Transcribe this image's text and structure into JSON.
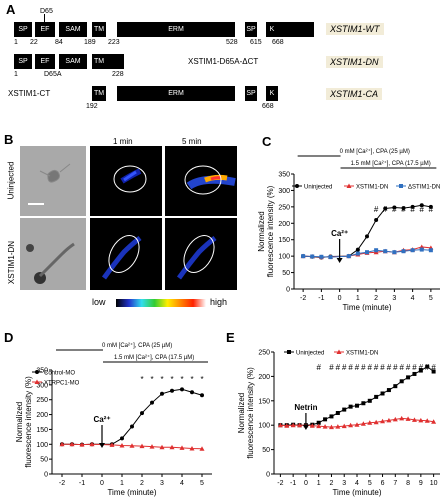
{
  "panels": {
    "A": "A",
    "B": "B",
    "C": "C",
    "D": "D",
    "E": "E"
  },
  "panelA": {
    "rows": [
      {
        "name": "XSTIM1-WT",
        "domains": [
          "SP",
          "EF",
          "SAM",
          "TM",
          "ERM",
          "SP",
          "K"
        ],
        "positions": [
          "1",
          "22",
          "84",
          "189",
          "223",
          "528",
          "615",
          "668"
        ],
        "mutation": "D65"
      },
      {
        "name": "XSTIM1-DN",
        "label": "XSTIM1-D65A-ΔCT",
        "domains": [
          "SP",
          "EF",
          "SAM",
          "TM"
        ],
        "positions": [
          "1",
          "D65A",
          "228"
        ]
      },
      {
        "name": "XSTIM1-CA",
        "label": "XSTIM1-CT",
        "domains": [
          "TM",
          "ERM",
          "SP",
          "K"
        ],
        "positions": [
          "192",
          "668"
        ]
      }
    ]
  },
  "panelB": {
    "col_headers": [
      "1 min",
      "5 min"
    ],
    "row_labels": [
      "Uninjected",
      "XSTIM1-DN"
    ],
    "scale_low": "low",
    "scale_high": "high"
  },
  "treatment": {
    "zero_ca": "0 mM [Ca²⁺], CPA (25 µM)",
    "high_ca": "1.5 mM [Ca²⁺], CPA (17.5 µM)",
    "ca_arrow": "Ca²⁺",
    "netrin_arrow": "Netrin"
  },
  "axis": {
    "ylabel": "Normalized fluorescence intensity (%)",
    "xlabel": "Time (minute)"
  },
  "chart_data": [
    {
      "panel": "C",
      "type": "line",
      "xlabel": "Time (minute)",
      "ylabel": "Normalized fluorescence intensity (%)",
      "xlim": [
        -2.5,
        5.5
      ],
      "ylim": [
        0,
        350
      ],
      "xticks": [
        -2,
        -1,
        0,
        1,
        2,
        3,
        4,
        5
      ],
      "yticks": [
        0,
        50,
        100,
        150,
        200,
        250,
        300,
        350
      ],
      "series": [
        {
          "name": "Uninjected",
          "color": "#000000",
          "marker": "circle",
          "x": [
            -2,
            -1.5,
            -1,
            -0.5,
            0.5,
            1,
            1.5,
            2,
            2.5,
            3,
            3.5,
            4,
            4.5,
            5
          ],
          "y": [
            100,
            98,
            96,
            99,
            100,
            120,
            160,
            210,
            245,
            248,
            246,
            250,
            255,
            250
          ]
        },
        {
          "name": "XSTIM1-DN",
          "color": "#e03030",
          "marker": "triangle",
          "x": [
            -2,
            -1.5,
            -1,
            -0.5,
            0.5,
            1,
            1.5,
            2,
            2.5,
            3,
            3.5,
            4,
            4.5,
            5
          ],
          "y": [
            100,
            99,
            97,
            98,
            100,
            105,
            110,
            112,
            115,
            112,
            118,
            120,
            128,
            125
          ]
        },
        {
          "name": "ΔSTIM1-DN",
          "color": "#3070c0",
          "marker": "square",
          "x": [
            -2,
            -1.5,
            -1,
            -0.5,
            0.5,
            1,
            1.5,
            2,
            2.5,
            3,
            3.5,
            4,
            4.5,
            5
          ],
          "y": [
            100,
            99,
            98,
            97,
            100,
            108,
            112,
            118,
            115,
            112,
            115,
            118,
            120,
            118
          ]
        }
      ],
      "significance": "#",
      "significance_x": [
        2,
        2.5,
        3,
        3.5,
        4,
        4.5,
        5
      ]
    },
    {
      "panel": "D",
      "type": "line",
      "xlabel": "Time (minute)",
      "ylabel": "Normalized fluorescence intensity (%)",
      "xlim": [
        -2.5,
        5.5
      ],
      "ylim": [
        0,
        350
      ],
      "xticks": [
        -2,
        -1,
        0,
        1,
        2,
        3,
        4,
        5
      ],
      "yticks": [
        0,
        50,
        100,
        150,
        200,
        250,
        300,
        350
      ],
      "series": [
        {
          "name": "Control-MO",
          "color": "#000000",
          "marker": "circle",
          "x": [
            -2,
            -1.5,
            -1,
            -0.5,
            0.5,
            1,
            1.5,
            2,
            2.5,
            3,
            3.5,
            4,
            4.5,
            5
          ],
          "y": [
            100,
            100,
            99,
            100,
            100,
            120,
            160,
            205,
            240,
            270,
            280,
            285,
            275,
            265
          ]
        },
        {
          "name": "XTRPC1-MO",
          "color": "#e03030",
          "marker": "triangle",
          "x": [
            -2,
            -1.5,
            -1,
            -0.5,
            0.5,
            1,
            1.5,
            2,
            2.5,
            3,
            3.5,
            4,
            4.5,
            5
          ],
          "y": [
            100,
            100,
            99,
            100,
            98,
            96,
            95,
            94,
            92,
            90,
            90,
            88,
            86,
            85
          ]
        }
      ],
      "significance": "*",
      "significance_x": [
        2,
        2.5,
        3,
        3.5,
        4,
        4.5,
        5
      ]
    },
    {
      "panel": "E",
      "type": "line",
      "xlabel": "Time (minute)",
      "ylabel": "Normalized fluorescence intensity (%)",
      "xlim": [
        -2.5,
        10.5
      ],
      "ylim": [
        0,
        250
      ],
      "xticks": [
        -2,
        -1,
        0,
        1,
        2,
        3,
        4,
        5,
        6,
        7,
        8,
        9,
        10
      ],
      "yticks": [
        0,
        50,
        100,
        150,
        200,
        250
      ],
      "series": [
        {
          "name": "Uninjected",
          "color": "#000000",
          "marker": "square",
          "x": [
            -2,
            -1.5,
            -1,
            -0.5,
            0,
            0.5,
            1,
            1.5,
            2,
            2.5,
            3,
            3.5,
            4,
            4.5,
            5,
            5.5,
            6,
            6.5,
            7,
            7.5,
            8,
            8.5,
            9,
            9.5,
            10
          ],
          "y": [
            100,
            100,
            101,
            100,
            100,
            101,
            105,
            112,
            118,
            125,
            132,
            138,
            140,
            145,
            150,
            158,
            165,
            172,
            180,
            190,
            198,
            205,
            212,
            220,
            210
          ]
        },
        {
          "name": "XSTIM1-DN",
          "color": "#e03030",
          "marker": "triangle",
          "x": [
            -2,
            -1.5,
            -1,
            -0.5,
            0,
            0.5,
            1,
            1.5,
            2,
            2.5,
            3,
            3.5,
            4,
            4.5,
            5,
            5.5,
            6,
            6.5,
            7,
            7.5,
            8,
            8.5,
            9,
            9.5,
            10
          ],
          "y": [
            100,
            99,
            100,
            100,
            100,
            99,
            98,
            97,
            96,
            97,
            98,
            100,
            101,
            103,
            105,
            106,
            108,
            110,
            112,
            114,
            113,
            111,
            110,
            109,
            107
          ]
        }
      ],
      "significance": "#",
      "significance_x": [
        1,
        2,
        2.5,
        3,
        3.5,
        4,
        4.5,
        5,
        5.5,
        6,
        6.5,
        7,
        7.5,
        8,
        8.5,
        9,
        9.5,
        10
      ]
    }
  ]
}
